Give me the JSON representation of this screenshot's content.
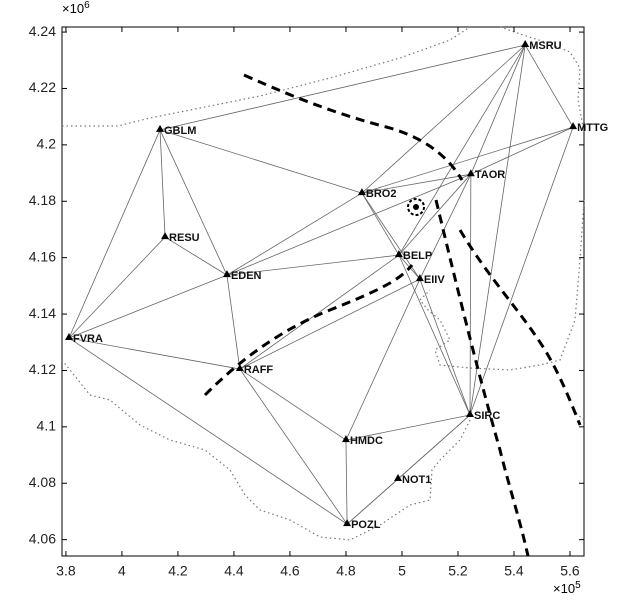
{
  "chart_data": {
    "type": "scatter",
    "x_exponent": {
      "base": "×10",
      "exp": "5"
    },
    "y_exponent": {
      "base": "×10",
      "exp": "6"
    },
    "xlim": [
      3.786,
      5.65
    ],
    "ylim": [
      4.0542,
      4.2418
    ],
    "xticks": [
      3.8,
      4,
      4.2,
      4.4,
      4.6,
      4.8,
      5,
      5.2,
      5.4,
      5.6
    ],
    "yticks": [
      4.06,
      4.08,
      4.1,
      4.12,
      4.14,
      4.16,
      4.18,
      4.2,
      4.22,
      4.24
    ],
    "color": "#000000",
    "series": [
      {
        "labels": [
          "MSRU",
          "MTTG",
          "GBLM",
          "TAOR",
          "BRO2",
          "RESU",
          "BELP",
          "EDEN",
          "EIIV",
          "FVRA",
          "RAFF",
          "SIRC",
          "HMDC",
          "NOT1",
          "POZL"
        ],
        "x": [
          5.44,
          5.611,
          4.136,
          5.246,
          4.857,
          4.154,
          4.989,
          4.375,
          5.064,
          3.811,
          4.421,
          5.243,
          4.8,
          4.986,
          4.804
        ],
        "values": [
          4.2354,
          4.2063,
          4.2053,
          4.1896,
          4.1829,
          4.1673,
          4.1609,
          4.1538,
          4.1524,
          4.1315,
          4.1205,
          4.1042,
          4.0953,
          4.0815,
          4.0655
        ]
      }
    ]
  }
}
